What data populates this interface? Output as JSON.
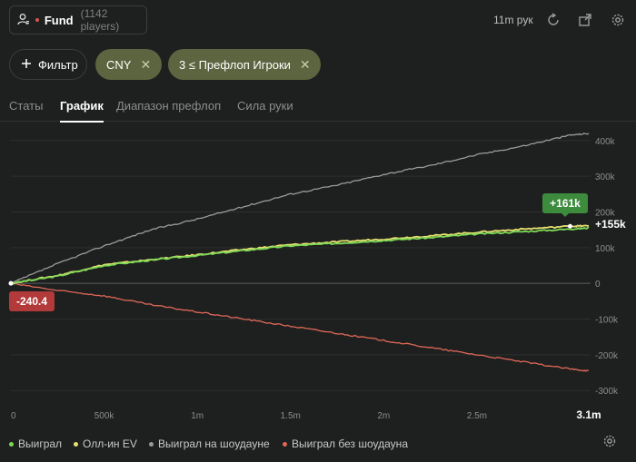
{
  "header": {
    "player_name": "Fund",
    "player_count": "(1142 players)",
    "hands_count": "11m рук"
  },
  "filters": {
    "filter_button_label": "Фильтр",
    "chips": [
      {
        "label": "CNY"
      },
      {
        "label": "3 ≤ Префлоп Игроки"
      }
    ]
  },
  "tabs": [
    {
      "label": "Статы"
    },
    {
      "label": "График"
    },
    {
      "label": "Диапазон префлоп"
    },
    {
      "label": "Сила руки"
    }
  ],
  "active_tab": "График",
  "chart_data": {
    "type": "line",
    "x_ticks": [
      "0",
      "500k",
      "1m",
      "1.5m",
      "2m",
      "2.5m",
      "3.1m"
    ],
    "x_tick_values": [
      0,
      500000,
      1000000,
      1500000,
      2000000,
      2500000,
      3100000
    ],
    "y_ticks": [
      "400k",
      "300k",
      "200k",
      "100k",
      "0",
      "-100k",
      "-200k",
      "-300k"
    ],
    "y_tick_values": [
      400000,
      300000,
      200000,
      100000,
      0,
      -100000,
      -200000,
      -300000
    ],
    "xlim": [
      0,
      3100000
    ],
    "ylim": [
      -300000,
      400000
    ],
    "grid": true,
    "legend_position": "bottom-left",
    "start_label": "-240.4",
    "end_labels": {
      "allin_ev": "+161k",
      "won": "+155k"
    },
    "series": [
      {
        "name": "Выиграл",
        "color": "#7ed957",
        "x": [
          0,
          250000,
          500000,
          750000,
          1000000,
          1250000,
          1500000,
          1750000,
          2000000,
          2250000,
          2500000,
          2750000,
          3000000,
          3100000
        ],
        "y": [
          0,
          20000,
          50000,
          65000,
          78000,
          92000,
          105000,
          112000,
          120000,
          128000,
          138000,
          145000,
          152000,
          155000
        ]
      },
      {
        "name": "Олл-ин EV",
        "color": "#e8e070",
        "x": [
          0,
          250000,
          500000,
          750000,
          1000000,
          1250000,
          1500000,
          1750000,
          2000000,
          2250000,
          2500000,
          2750000,
          3000000,
          3100000
        ],
        "y": [
          0,
          22000,
          52000,
          66000,
          80000,
          95000,
          108000,
          116000,
          124000,
          133000,
          143000,
          152000,
          160000,
          161000
        ]
      },
      {
        "name": "Выиграл на шоудауне",
        "color": "#9a9a9a",
        "x": [
          0,
          250000,
          500000,
          750000,
          1000000,
          1250000,
          1500000,
          1750000,
          2000000,
          2250000,
          2500000,
          2750000,
          3000000,
          3100000
        ],
        "y": [
          0,
          55000,
          105000,
          150000,
          180000,
          215000,
          250000,
          275000,
          305000,
          330000,
          360000,
          385000,
          415000,
          420000
        ]
      },
      {
        "name": "Выиграл без шоудауна",
        "color": "#e06858",
        "x": [
          0,
          250000,
          500000,
          750000,
          1000000,
          1250000,
          1500000,
          1750000,
          2000000,
          2250000,
          2500000,
          2750000,
          3000000,
          3100000
        ],
        "y": [
          0,
          -20000,
          -35000,
          -60000,
          -80000,
          -100000,
          -120000,
          -140000,
          -160000,
          -180000,
          -200000,
          -220000,
          -240000,
          -245000
        ]
      }
    ]
  },
  "colors": {
    "background": "#1e201f",
    "chip": "#5d6440",
    "start_badge": "#b33a3a",
    "end_badge": "#3d8b3d"
  },
  "icons": {
    "player": "user-icon",
    "refresh": "refresh-icon",
    "export": "export-icon",
    "settings": "gear-icon",
    "filter": "plus-icon",
    "chip_close": "close-icon"
  }
}
